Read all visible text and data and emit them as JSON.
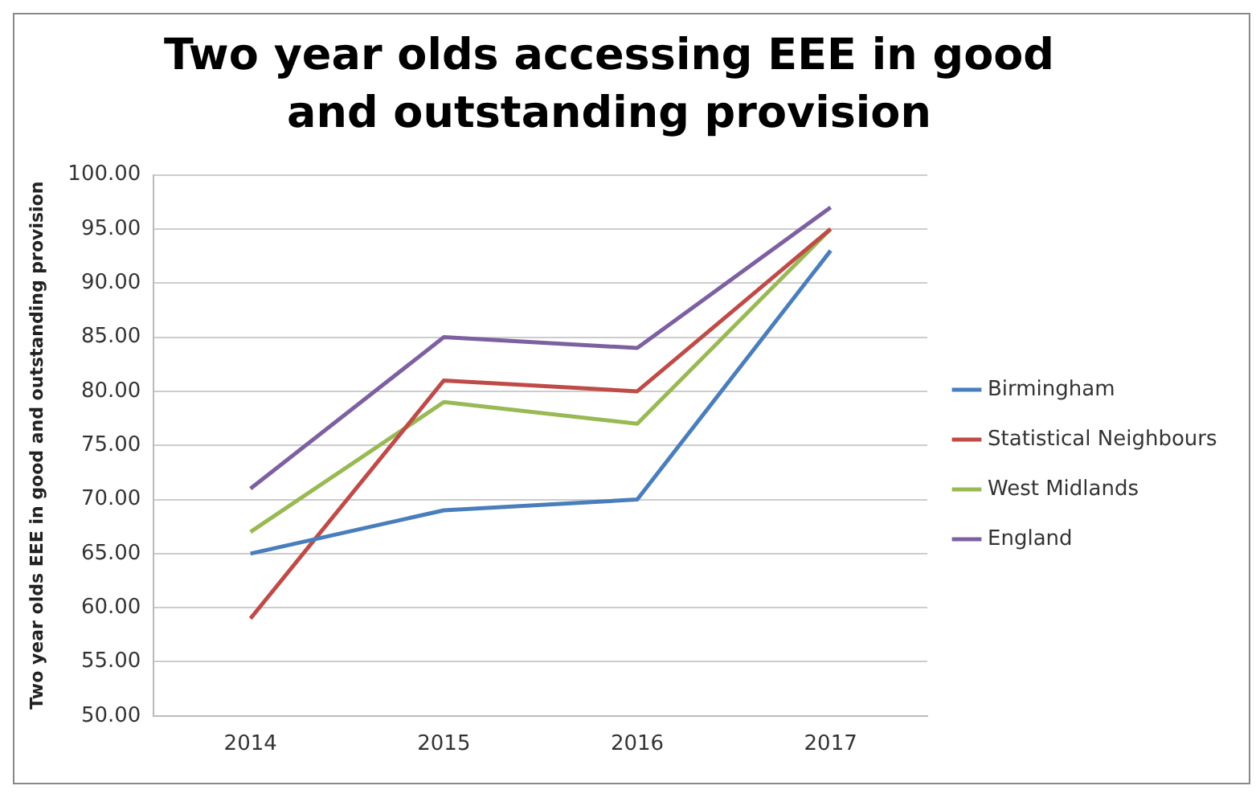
{
  "chart_data": {
    "type": "line",
    "title": "Two year olds accessing EEE in good and outstanding provision",
    "ylabel": "Two year olds EEE in good and outstanding provision",
    "categories": [
      "2014",
      "2015",
      "2016",
      "2017"
    ],
    "series": [
      {
        "name": "Birmingham",
        "color": "#4a7ebb",
        "values": [
          65,
          69,
          70,
          93
        ]
      },
      {
        "name": "Statistical Neighbours",
        "color": "#be4b48",
        "values": [
          59,
          81,
          80,
          95
        ]
      },
      {
        "name": "West Midlands",
        "color": "#98b954",
        "values": [
          67,
          79,
          77,
          95
        ]
      },
      {
        "name": "England",
        "color": "#7d60a0",
        "values": [
          71,
          85,
          84,
          97
        ]
      }
    ],
    "ylim": [
      50,
      100
    ],
    "yticks": [
      {
        "value": 50,
        "label": "50.00"
      },
      {
        "value": 55,
        "label": "55.00"
      },
      {
        "value": 60,
        "label": "60.00"
      },
      {
        "value": 65,
        "label": "65.00"
      },
      {
        "value": 70,
        "label": "70.00"
      },
      {
        "value": 75,
        "label": "75.00"
      },
      {
        "value": 80,
        "label": "80.00"
      },
      {
        "value": 85,
        "label": "85.00"
      },
      {
        "value": 90,
        "label": "90.00"
      },
      {
        "value": 95,
        "label": "95.00"
      },
      {
        "value": 100,
        "label": "100.00"
      }
    ],
    "grid": "y",
    "legend": "right",
    "marker": "none",
    "line_style": "solid"
  }
}
